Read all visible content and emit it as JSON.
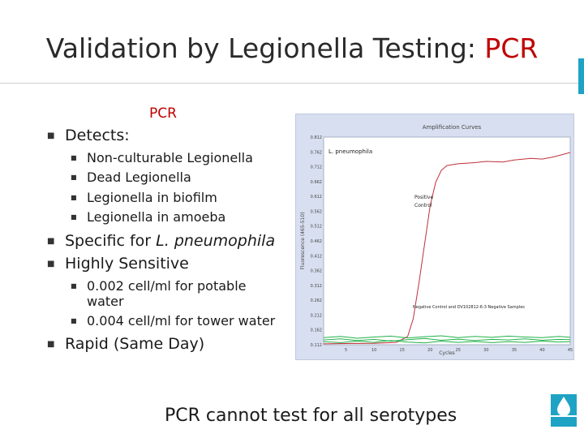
{
  "title": {
    "main": "Validation by Legionella Testing: ",
    "accent": "PCR"
  },
  "pcr_label": "PCR",
  "bullets": {
    "detects": "Detects:",
    "detects_items": [
      "Non-culturable Legionella",
      "Dead Legionella",
      "Legionella in biofilm",
      "Legionella in amoeba"
    ],
    "specific_prefix": "Specific for ",
    "specific_species": "L. pneumophila",
    "sensitive": "Highly Sensitive",
    "sensitive_items": [
      "0.002 cell/ml for potable",
      "water",
      "0.004 cell/ml for tower water"
    ],
    "rapid": "Rapid (Same Day)"
  },
  "footer": "PCR cannot test for all serotypes",
  "colors": {
    "accent": "#c00000",
    "positive": "#c0303a",
    "negative": "#22b24a",
    "chart_bg": "#d7dff0",
    "brand": "#1fa3c4"
  },
  "icons": {
    "bullet": "square-bullet-icon",
    "logo": "water-drop-logo"
  },
  "chart_data": {
    "type": "line",
    "title": "Amplification Curves",
    "xlabel": "Cycles",
    "ylabel": "Fluorescence (465-510)",
    "xlim": [
      1,
      45
    ],
    "ylim": [
      0.112,
      0.812
    ],
    "x_ticks": [
      5,
      10,
      15,
      20,
      25,
      30,
      35,
      40,
      45
    ],
    "y_ticks": [
      "0.812",
      "0.762",
      "0.712",
      "0.662",
      "0.612",
      "0.562",
      "0.512",
      "0.462",
      "0.412",
      "0.362",
      "0.312",
      "0.262",
      "0.212",
      "0.162",
      "0.112"
    ],
    "annotations": {
      "series_label": "L. pneumophila",
      "positive_line1": "Positive",
      "positive_line2": "Control",
      "negative": "Negative Control and DV102812-6-3 Negative Samples"
    },
    "series": [
      {
        "color": "#c0303a",
        "x": [
          1,
          5,
          10,
          14,
          16,
          17,
          18,
          19,
          20,
          21,
          22,
          23,
          25,
          28,
          30,
          33,
          35,
          38,
          40,
          42,
          45
        ],
        "y": [
          0.115,
          0.116,
          0.117,
          0.12,
          0.14,
          0.2,
          0.32,
          0.45,
          0.58,
          0.66,
          0.7,
          0.716,
          0.722,
          0.726,
          0.73,
          0.728,
          0.735,
          0.74,
          0.738,
          0.745,
          0.76
        ]
      },
      {
        "color": "#22b24a",
        "x": [
          1,
          4,
          7,
          10,
          13,
          16,
          19,
          22,
          25,
          28,
          31,
          34,
          37,
          40,
          43,
          45
        ],
        "y": [
          0.128,
          0.132,
          0.126,
          0.13,
          0.124,
          0.129,
          0.133,
          0.127,
          0.131,
          0.126,
          0.13,
          0.128,
          0.132,
          0.127,
          0.13,
          0.129
        ]
      },
      {
        "color": "#22b24a",
        "x": [
          1,
          4,
          7,
          10,
          13,
          16,
          19,
          22,
          25,
          28,
          31,
          34,
          37,
          40,
          43,
          45
        ],
        "y": [
          0.122,
          0.119,
          0.124,
          0.12,
          0.126,
          0.121,
          0.118,
          0.124,
          0.12,
          0.123,
          0.119,
          0.122,
          0.12,
          0.124,
          0.121,
          0.122
        ]
      },
      {
        "color": "#22b24a",
        "x": [
          1,
          4,
          7,
          10,
          13,
          16,
          19,
          22,
          25,
          28,
          31,
          34,
          37,
          40,
          43,
          45
        ],
        "y": [
          0.136,
          0.14,
          0.134,
          0.138,
          0.141,
          0.135,
          0.139,
          0.142,
          0.136,
          0.14,
          0.137,
          0.141,
          0.138,
          0.136,
          0.14,
          0.137
        ]
      }
    ]
  }
}
